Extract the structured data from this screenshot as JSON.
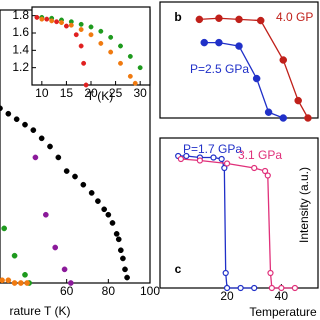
{
  "chart_data": [
    {
      "type": "scatter",
      "x_label": "rature T (K)",
      "xlim": [
        28,
        100
      ],
      "xticks": [
        60,
        80,
        100
      ],
      "ylim": [
        0,
        1
      ],
      "series": [
        {
          "color": "#000000",
          "x": [
            28,
            32,
            36,
            40,
            44,
            48,
            52,
            56,
            60,
            64,
            68,
            72,
            75,
            78,
            80,
            82,
            84,
            85,
            86,
            87,
            88,
            89
          ],
          "values": [
            0.64,
            0.62,
            0.6,
            0.58,
            0.56,
            0.53,
            0.5,
            0.46,
            0.41,
            0.39,
            0.36,
            0.33,
            0.3,
            0.27,
            0.25,
            0.22,
            0.18,
            0.16,
            0.12,
            0.09,
            0.05,
            0.02
          ]
        },
        {
          "color": "#8b1a9a",
          "x": [
            45,
            50,
            54.5,
            59,
            62
          ],
          "values": [
            0.46,
            0.25,
            0.13,
            0.05,
            0
          ]
        },
        {
          "color": "#1e9a1e",
          "x": [
            30,
            35,
            40,
            42
          ],
          "values": [
            0.2,
            0.1,
            0.03,
            0
          ]
        },
        {
          "color": "#f07a10",
          "x": [
            29,
            32,
            35,
            38,
            41
          ],
          "values": [
            0.01,
            0.01,
            0,
            0,
            0
          ]
        }
      ]
    },
    {
      "type": "scatter",
      "x_label": "T (K)",
      "xlim": [
        8,
        32
      ],
      "xticks": [
        10,
        15,
        20,
        25,
        30
      ],
      "ylim": [
        1.0,
        1.9
      ],
      "yticks": [
        1.2,
        1.4,
        1.6,
        1.8
      ],
      "series": [
        {
          "color": "#1e9a1e",
          "x": [
            10,
            12,
            14,
            16,
            18,
            20,
            22,
            24,
            26,
            28,
            30
          ],
          "values": [
            1.78,
            1.77,
            1.75,
            1.73,
            1.7,
            1.67,
            1.62,
            1.55,
            1.45,
            1.33,
            1.2
          ]
        },
        {
          "color": "#f07a10",
          "x": [
            10,
            12,
            14,
            16,
            18,
            20,
            22,
            24,
            26,
            28,
            29
          ],
          "values": [
            1.76,
            1.74,
            1.72,
            1.69,
            1.64,
            1.58,
            1.48,
            1.38,
            1.25,
            1.1,
            1.02
          ]
        },
        {
          "color": "#e02020",
          "x": [
            9,
            11,
            13,
            15,
            17,
            18,
            18.5,
            19
          ],
          "values": [
            1.78,
            1.76,
            1.73,
            1.68,
            1.58,
            1.45,
            1.25,
            1.0
          ]
        }
      ]
    },
    {
      "type": "line",
      "panel_label": "b",
      "xlim": [
        -4.7,
        53.5
      ],
      "ylim": [
        0,
        1
      ],
      "series": [
        {
          "name": "4.0 GP",
          "color": "#c0201a",
          "x": [
            9.8,
            17,
            24.4,
            32.4,
            40.7,
            46.2,
            49.8
          ],
          "values": [
            0.85,
            0.86,
            0.85,
            0.84,
            0.5,
            0.15,
            0
          ]
        },
        {
          "name": "P=2.5 GPa",
          "color": "#2030c8",
          "x": [
            11.6,
            17,
            24.4,
            30.9,
            35.3,
            40.7
          ],
          "values": [
            0.65,
            0.65,
            0.62,
            0.34,
            0.05,
            0
          ]
        }
      ]
    },
    {
      "type": "line",
      "panel_label": "c",
      "x_label": "Temperature",
      "y_label": "Intensity (a.u.)",
      "xlim": [
        -4.7,
        53.5
      ],
      "xticks": [
        20,
        40
      ],
      "ylim": [
        0,
        1
      ],
      "series": [
        {
          "name": "P=1.7 GPa",
          "color": "#2030c8",
          "x": [
            2,
            5,
            10,
            15,
            18,
            19,
            19.5,
            20,
            25,
            30
          ],
          "values": [
            0.88,
            0.88,
            0.87,
            0.87,
            0.86,
            0.8,
            0.1,
            0,
            0,
            0
          ]
        },
        {
          "name": "3.1 GPa",
          "color": "#e0307a",
          "x": [
            3,
            10,
            20,
            30,
            34,
            35,
            36,
            36.5,
            40,
            45
          ],
          "values": [
            0.86,
            0.85,
            0.83,
            0.8,
            0.78,
            0.75,
            0.1,
            0,
            0,
            0
          ]
        }
      ]
    }
  ]
}
